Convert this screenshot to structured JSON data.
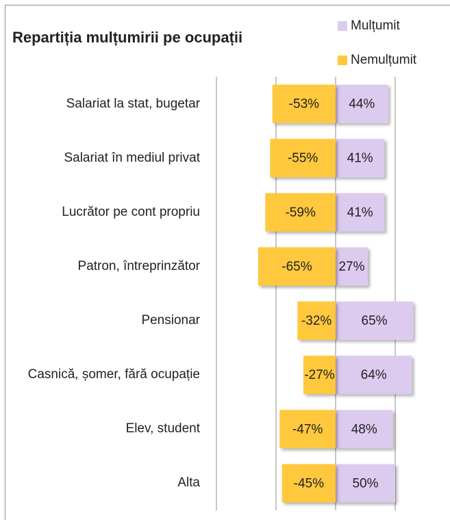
{
  "chart_data": {
    "type": "diverging-bar",
    "title": "Repartiția mulțumirii pe ocupații",
    "categories": [
      "Salariat la stat, bugetar",
      "Salariat în mediul privat",
      "Lucrător pe cont propriu",
      "Patron, întreprinzător",
      "Pensionar",
      "Casnică, șomer, fără ocupație",
      "Elev, student",
      "Alta"
    ],
    "series": [
      {
        "name": "Mulțumit",
        "color": "#dccbef",
        "values": [
          44,
          41,
          41,
          27,
          65,
          64,
          48,
          50
        ],
        "value_labels": [
          "44%",
          "41%",
          "41%",
          "27%",
          "65%",
          "64%",
          "48%",
          "50%"
        ]
      },
      {
        "name": "Nemulțumit",
        "color": "#ffc83d",
        "values": [
          -53,
          -55,
          -59,
          -65,
          -32,
          -27,
          -47,
          -45
        ],
        "value_labels": [
          "-53%",
          "-55%",
          "-59%",
          "-65%",
          "-32%",
          "-27%",
          "-47%",
          "-45%"
        ]
      }
    ],
    "xlim": [
      -100,
      100
    ],
    "xticks": [
      -100,
      -50,
      0,
      50
    ],
    "grid": true,
    "legend": "top-right"
  }
}
